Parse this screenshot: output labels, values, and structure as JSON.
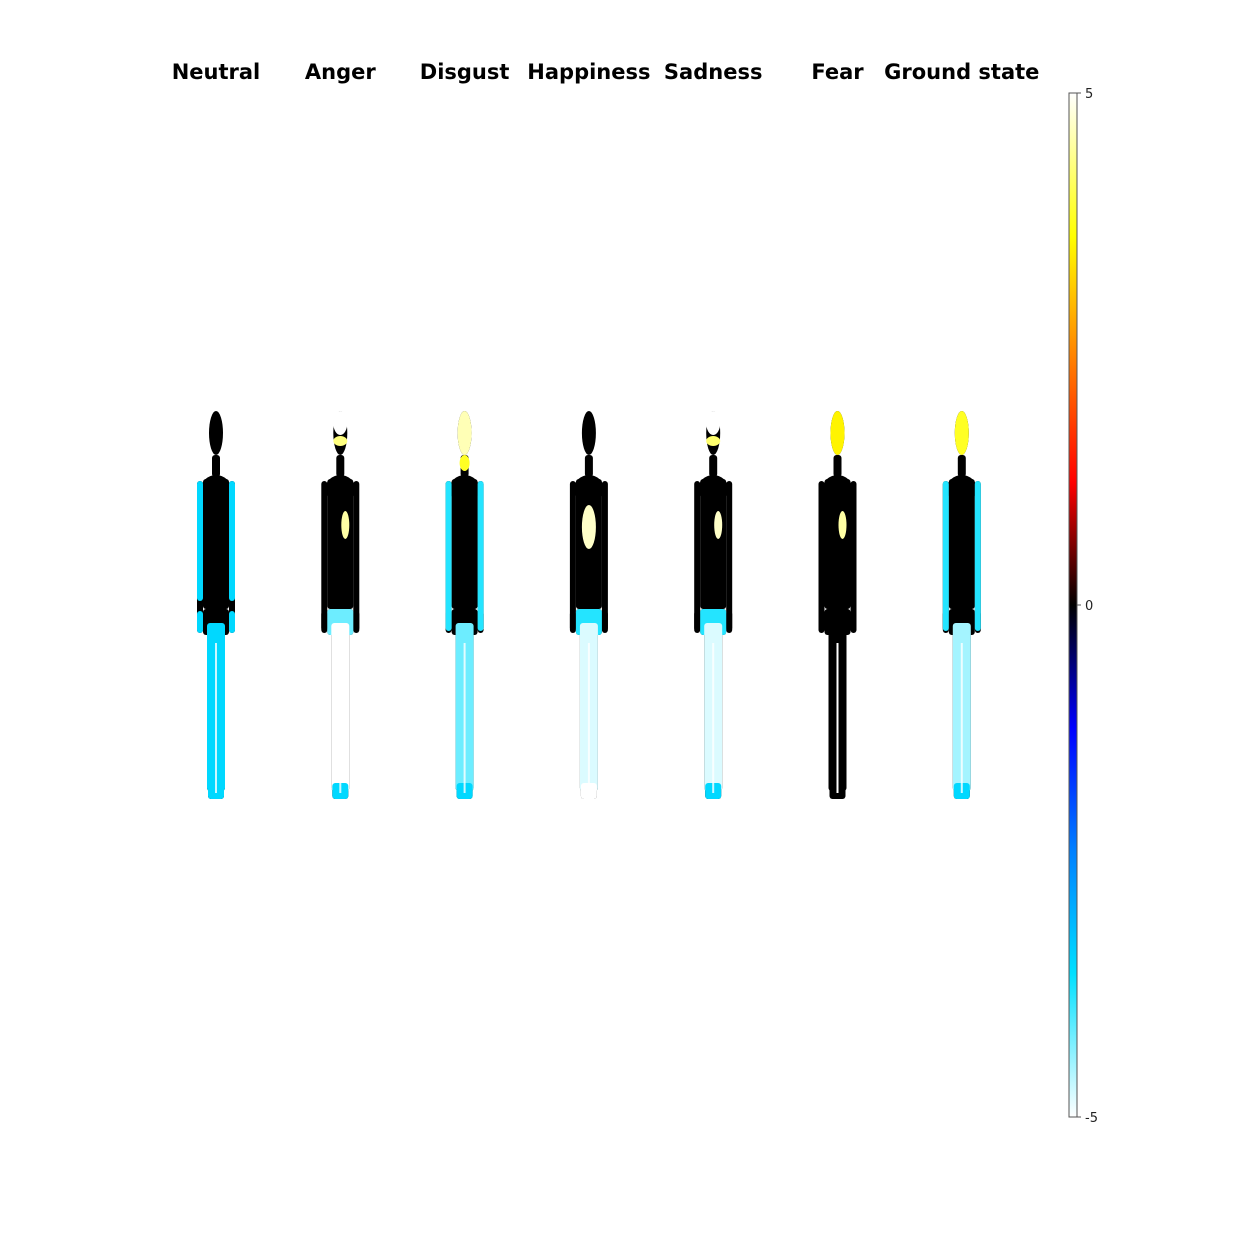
{
  "chart_data": {
    "type": "heatmap",
    "title": "",
    "panels": [
      {
        "label": "Neutral",
        "regions": [
          {
            "region": "head",
            "value": 0
          },
          {
            "region": "chest",
            "value": 0
          },
          {
            "region": "upper-arms",
            "value": -3.5
          },
          {
            "region": "hands",
            "value": -3.5
          },
          {
            "region": "thighs",
            "value": -3.5
          },
          {
            "region": "legs",
            "value": -3.5
          },
          {
            "region": "feet",
            "value": -3.5
          }
        ]
      },
      {
        "label": "Anger",
        "regions": [
          {
            "region": "top-of-head",
            "value": -5
          },
          {
            "region": "forehead",
            "value": 4.3
          },
          {
            "region": "heart",
            "value": 4.5
          },
          {
            "region": "chest",
            "value": 0
          },
          {
            "region": "hips",
            "value": -4.2
          },
          {
            "region": "legs",
            "value": -5
          },
          {
            "region": "feet",
            "value": -3.5
          }
        ]
      },
      {
        "label": "Disgust",
        "regions": [
          {
            "region": "head",
            "value": 4.6
          },
          {
            "region": "throat",
            "value": 3.8
          },
          {
            "region": "arms",
            "value": -3.8
          },
          {
            "region": "chest",
            "value": 0
          },
          {
            "region": "legs",
            "value": -4.2
          },
          {
            "region": "feet",
            "value": -3.5
          }
        ]
      },
      {
        "label": "Happiness",
        "regions": [
          {
            "region": "head",
            "value": 0
          },
          {
            "region": "chest-center",
            "value": 4.7
          },
          {
            "region": "hips",
            "value": -3.8
          },
          {
            "region": "legs",
            "value": -4.8
          },
          {
            "region": "feet",
            "value": -5
          }
        ]
      },
      {
        "label": "Sadness",
        "regions": [
          {
            "region": "top-of-head",
            "value": -5
          },
          {
            "region": "forehead",
            "value": 4.2
          },
          {
            "region": "heart",
            "value": 4.7
          },
          {
            "region": "hips",
            "value": -3.8
          },
          {
            "region": "legs",
            "value": -4.8
          },
          {
            "region": "feet",
            "value": -3.5
          }
        ]
      },
      {
        "label": "Fear",
        "regions": [
          {
            "region": "head",
            "value": 3.5
          },
          {
            "region": "heart",
            "value": 4.5
          },
          {
            "region": "body",
            "value": 0
          },
          {
            "region": "legs",
            "value": 0
          }
        ]
      },
      {
        "label": "Ground state",
        "regions": [
          {
            "region": "head",
            "value": 3.8
          },
          {
            "region": "arms",
            "value": -3.8
          },
          {
            "region": "chest",
            "value": 0
          },
          {
            "region": "legs",
            "value": -4.5
          },
          {
            "region": "feet",
            "value": -3.5
          }
        ]
      }
    ],
    "colorbar": {
      "min": -5,
      "max": 5,
      "ticks": [
        "5",
        "0",
        "-5"
      ],
      "tick_values": [
        5,
        0,
        -5
      ],
      "colormap": [
        {
          "value": 5,
          "color": "#ffffff"
        },
        {
          "value": 3.6,
          "color": "#ffff00"
        },
        {
          "value": 2.4,
          "color": "#ff7f00"
        },
        {
          "value": 1.2,
          "color": "#ff0000"
        },
        {
          "value": 0,
          "color": "#000000"
        },
        {
          "value": -1.2,
          "color": "#0000ff"
        },
        {
          "value": -2.4,
          "color": "#0080ff"
        },
        {
          "value": -3.6,
          "color": "#00e0ff"
        },
        {
          "value": -5,
          "color": "#ffffff"
        }
      ]
    }
  }
}
